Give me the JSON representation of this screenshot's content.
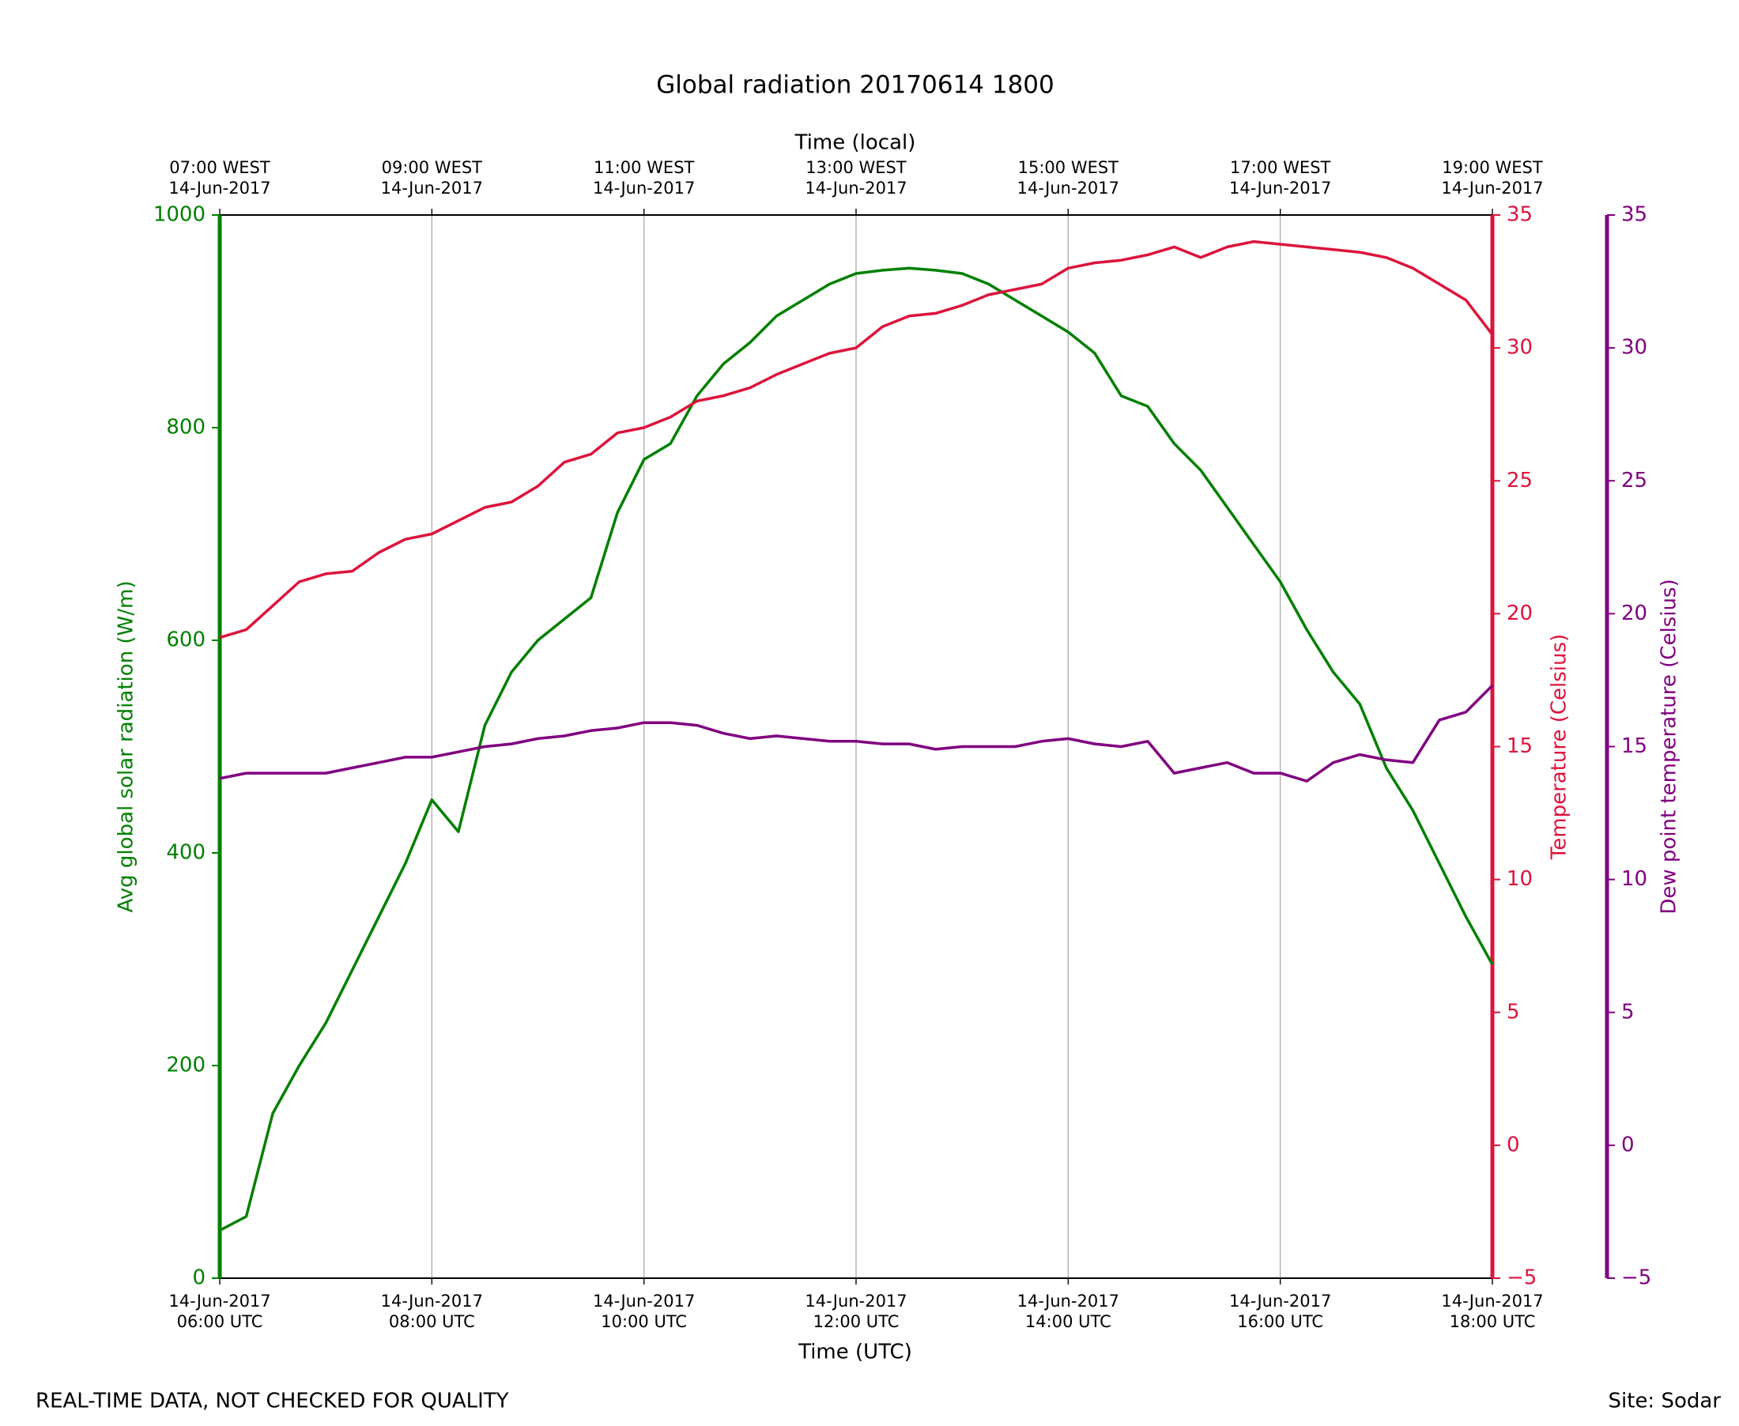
{
  "chart_data": {
    "type": "line",
    "title": "Global radiation 20170614 1800",
    "xlabel": "Time (UTC)",
    "x2label": "Time (local)",
    "ylabel": "Avg global solar radiation (W/m)",
    "y2label": "Temperature (Celsius)",
    "y3label": "Dew point temperature (Celsius)",
    "footer_left": "REAL-TIME DATA, NOT CHECKED FOR QUALITY",
    "footer_right": "Site: Sodar",
    "grid": "x",
    "xlim": [
      "2017-06-14 06:00",
      "2017-06-14 18:00"
    ],
    "xticks": [
      {
        "value": "2017-06-14 06:00",
        "label": [
          "14-Jun-2017",
          "06:00 UTC"
        ]
      },
      {
        "value": "2017-06-14 08:00",
        "label": [
          "14-Jun-2017",
          "08:00 UTC"
        ]
      },
      {
        "value": "2017-06-14 10:00",
        "label": [
          "14-Jun-2017",
          "10:00 UTC"
        ]
      },
      {
        "value": "2017-06-14 12:00",
        "label": [
          "14-Jun-2017",
          "12:00 UTC"
        ]
      },
      {
        "value": "2017-06-14 14:00",
        "label": [
          "14-Jun-2017",
          "14:00 UTC"
        ]
      },
      {
        "value": "2017-06-14 16:00",
        "label": [
          "14-Jun-2017",
          "16:00 UTC"
        ]
      },
      {
        "value": "2017-06-14 18:00",
        "label": [
          "14-Jun-2017",
          "18:00 UTC"
        ]
      }
    ],
    "x2ticks": [
      {
        "value": "2017-06-14 06:00",
        "label": [
          "07:00 WEST",
          "14-Jun-2017"
        ]
      },
      {
        "value": "2017-06-14 08:00",
        "label": [
          "09:00 WEST",
          "14-Jun-2017"
        ]
      },
      {
        "value": "2017-06-14 10:00",
        "label": [
          "11:00 WEST",
          "14-Jun-2017"
        ]
      },
      {
        "value": "2017-06-14 12:00",
        "label": [
          "13:00 WEST",
          "14-Jun-2017"
        ]
      },
      {
        "value": "2017-06-14 14:00",
        "label": [
          "15:00 WEST",
          "14-Jun-2017"
        ]
      },
      {
        "value": "2017-06-14 16:00",
        "label": [
          "17:00 WEST",
          "14-Jun-2017"
        ]
      },
      {
        "value": "2017-06-14 18:00",
        "label": [
          "19:00 WEST",
          "14-Jun-2017"
        ]
      }
    ],
    "ylim": [
      0,
      1000
    ],
    "yticks": [
      0,
      200,
      400,
      600,
      800,
      1000
    ],
    "ycolor": "#008000",
    "y2lim": [
      -5,
      35
    ],
    "y2ticks": [
      {
        "value": -5,
        "label": "−5"
      },
      0,
      5,
      10,
      15,
      20,
      25,
      30,
      35
    ],
    "y2color": "#dc143c",
    "y3lim": [
      -5,
      35
    ],
    "y3ticks": [
      {
        "value": -5,
        "label": "−5"
      },
      0,
      5,
      10,
      15,
      20,
      25,
      30,
      35
    ],
    "y3color": "#800080",
    "x": [
      "2017-06-14 06:00",
      "2017-06-14 06:15",
      "2017-06-14 06:30",
      "2017-06-14 06:45",
      "2017-06-14 07:00",
      "2017-06-14 07:15",
      "2017-06-14 07:30",
      "2017-06-14 07:45",
      "2017-06-14 08:00",
      "2017-06-14 08:15",
      "2017-06-14 08:30",
      "2017-06-14 08:45",
      "2017-06-14 09:00",
      "2017-06-14 09:15",
      "2017-06-14 09:30",
      "2017-06-14 09:45",
      "2017-06-14 10:00",
      "2017-06-14 10:15",
      "2017-06-14 10:30",
      "2017-06-14 10:45",
      "2017-06-14 11:00",
      "2017-06-14 11:15",
      "2017-06-14 11:30",
      "2017-06-14 11:45",
      "2017-06-14 12:00",
      "2017-06-14 12:15",
      "2017-06-14 12:30",
      "2017-06-14 12:45",
      "2017-06-14 13:00",
      "2017-06-14 13:15",
      "2017-06-14 13:30",
      "2017-06-14 13:45",
      "2017-06-14 14:00",
      "2017-06-14 14:15",
      "2017-06-14 14:30",
      "2017-06-14 14:45",
      "2017-06-14 15:00",
      "2017-06-14 15:15",
      "2017-06-14 15:30",
      "2017-06-14 15:45",
      "2017-06-14 16:00",
      "2017-06-14 16:15",
      "2017-06-14 16:30",
      "2017-06-14 16:45",
      "2017-06-14 17:00",
      "2017-06-14 17:15",
      "2017-06-14 17:30",
      "2017-06-14 17:45",
      "2017-06-14 18:00"
    ],
    "series": [
      {
        "color": "#008000",
        "axis": "y",
        "values": [
          45,
          58,
          155,
          200,
          240,
          290,
          340,
          390,
          450,
          420,
          520,
          570,
          600,
          620,
          640,
          720,
          770,
          785,
          830,
          860,
          880,
          905,
          920,
          935,
          945,
          948,
          950,
          948,
          945,
          935,
          920,
          905,
          890,
          870,
          830,
          820,
          785,
          760,
          725,
          690,
          655,
          610,
          570,
          540,
          480,
          440,
          390,
          340,
          295
        ]
      },
      {
        "color": "#dc143c",
        "axis": "y2",
        "values": [
          19.1,
          19.4,
          20.3,
          21.2,
          21.5,
          21.6,
          22.3,
          22.8,
          23.0,
          23.5,
          24.0,
          24.2,
          24.8,
          25.7,
          26.0,
          26.8,
          27.0,
          27.4,
          28.0,
          28.2,
          28.5,
          29.0,
          29.4,
          29.8,
          30.0,
          30.8,
          31.2,
          31.3,
          31.6,
          32.0,
          32.2,
          32.4,
          33.0,
          33.2,
          33.3,
          33.5,
          33.8,
          33.4,
          33.8,
          34.0,
          33.9,
          33.8,
          33.7,
          33.6,
          33.4,
          33.0,
          32.4,
          31.8,
          30.5
        ]
      },
      {
        "color": "#800080",
        "axis": "y3",
        "values": [
          13.8,
          14.0,
          14.0,
          14.0,
          14.0,
          14.2,
          14.4,
          14.6,
          14.6,
          14.8,
          15.0,
          15.1,
          15.3,
          15.4,
          15.6,
          15.7,
          15.9,
          15.9,
          15.8,
          15.5,
          15.3,
          15.4,
          15.3,
          15.2,
          15.2,
          15.1,
          15.1,
          14.9,
          15.0,
          15.0,
          15.0,
          15.2,
          15.3,
          15.1,
          15.0,
          15.2,
          14.0,
          14.2,
          14.4,
          14.0,
          14.0,
          13.7,
          14.4,
          14.7,
          14.5,
          14.4,
          16.0,
          16.3,
          17.3
        ]
      }
    ]
  }
}
